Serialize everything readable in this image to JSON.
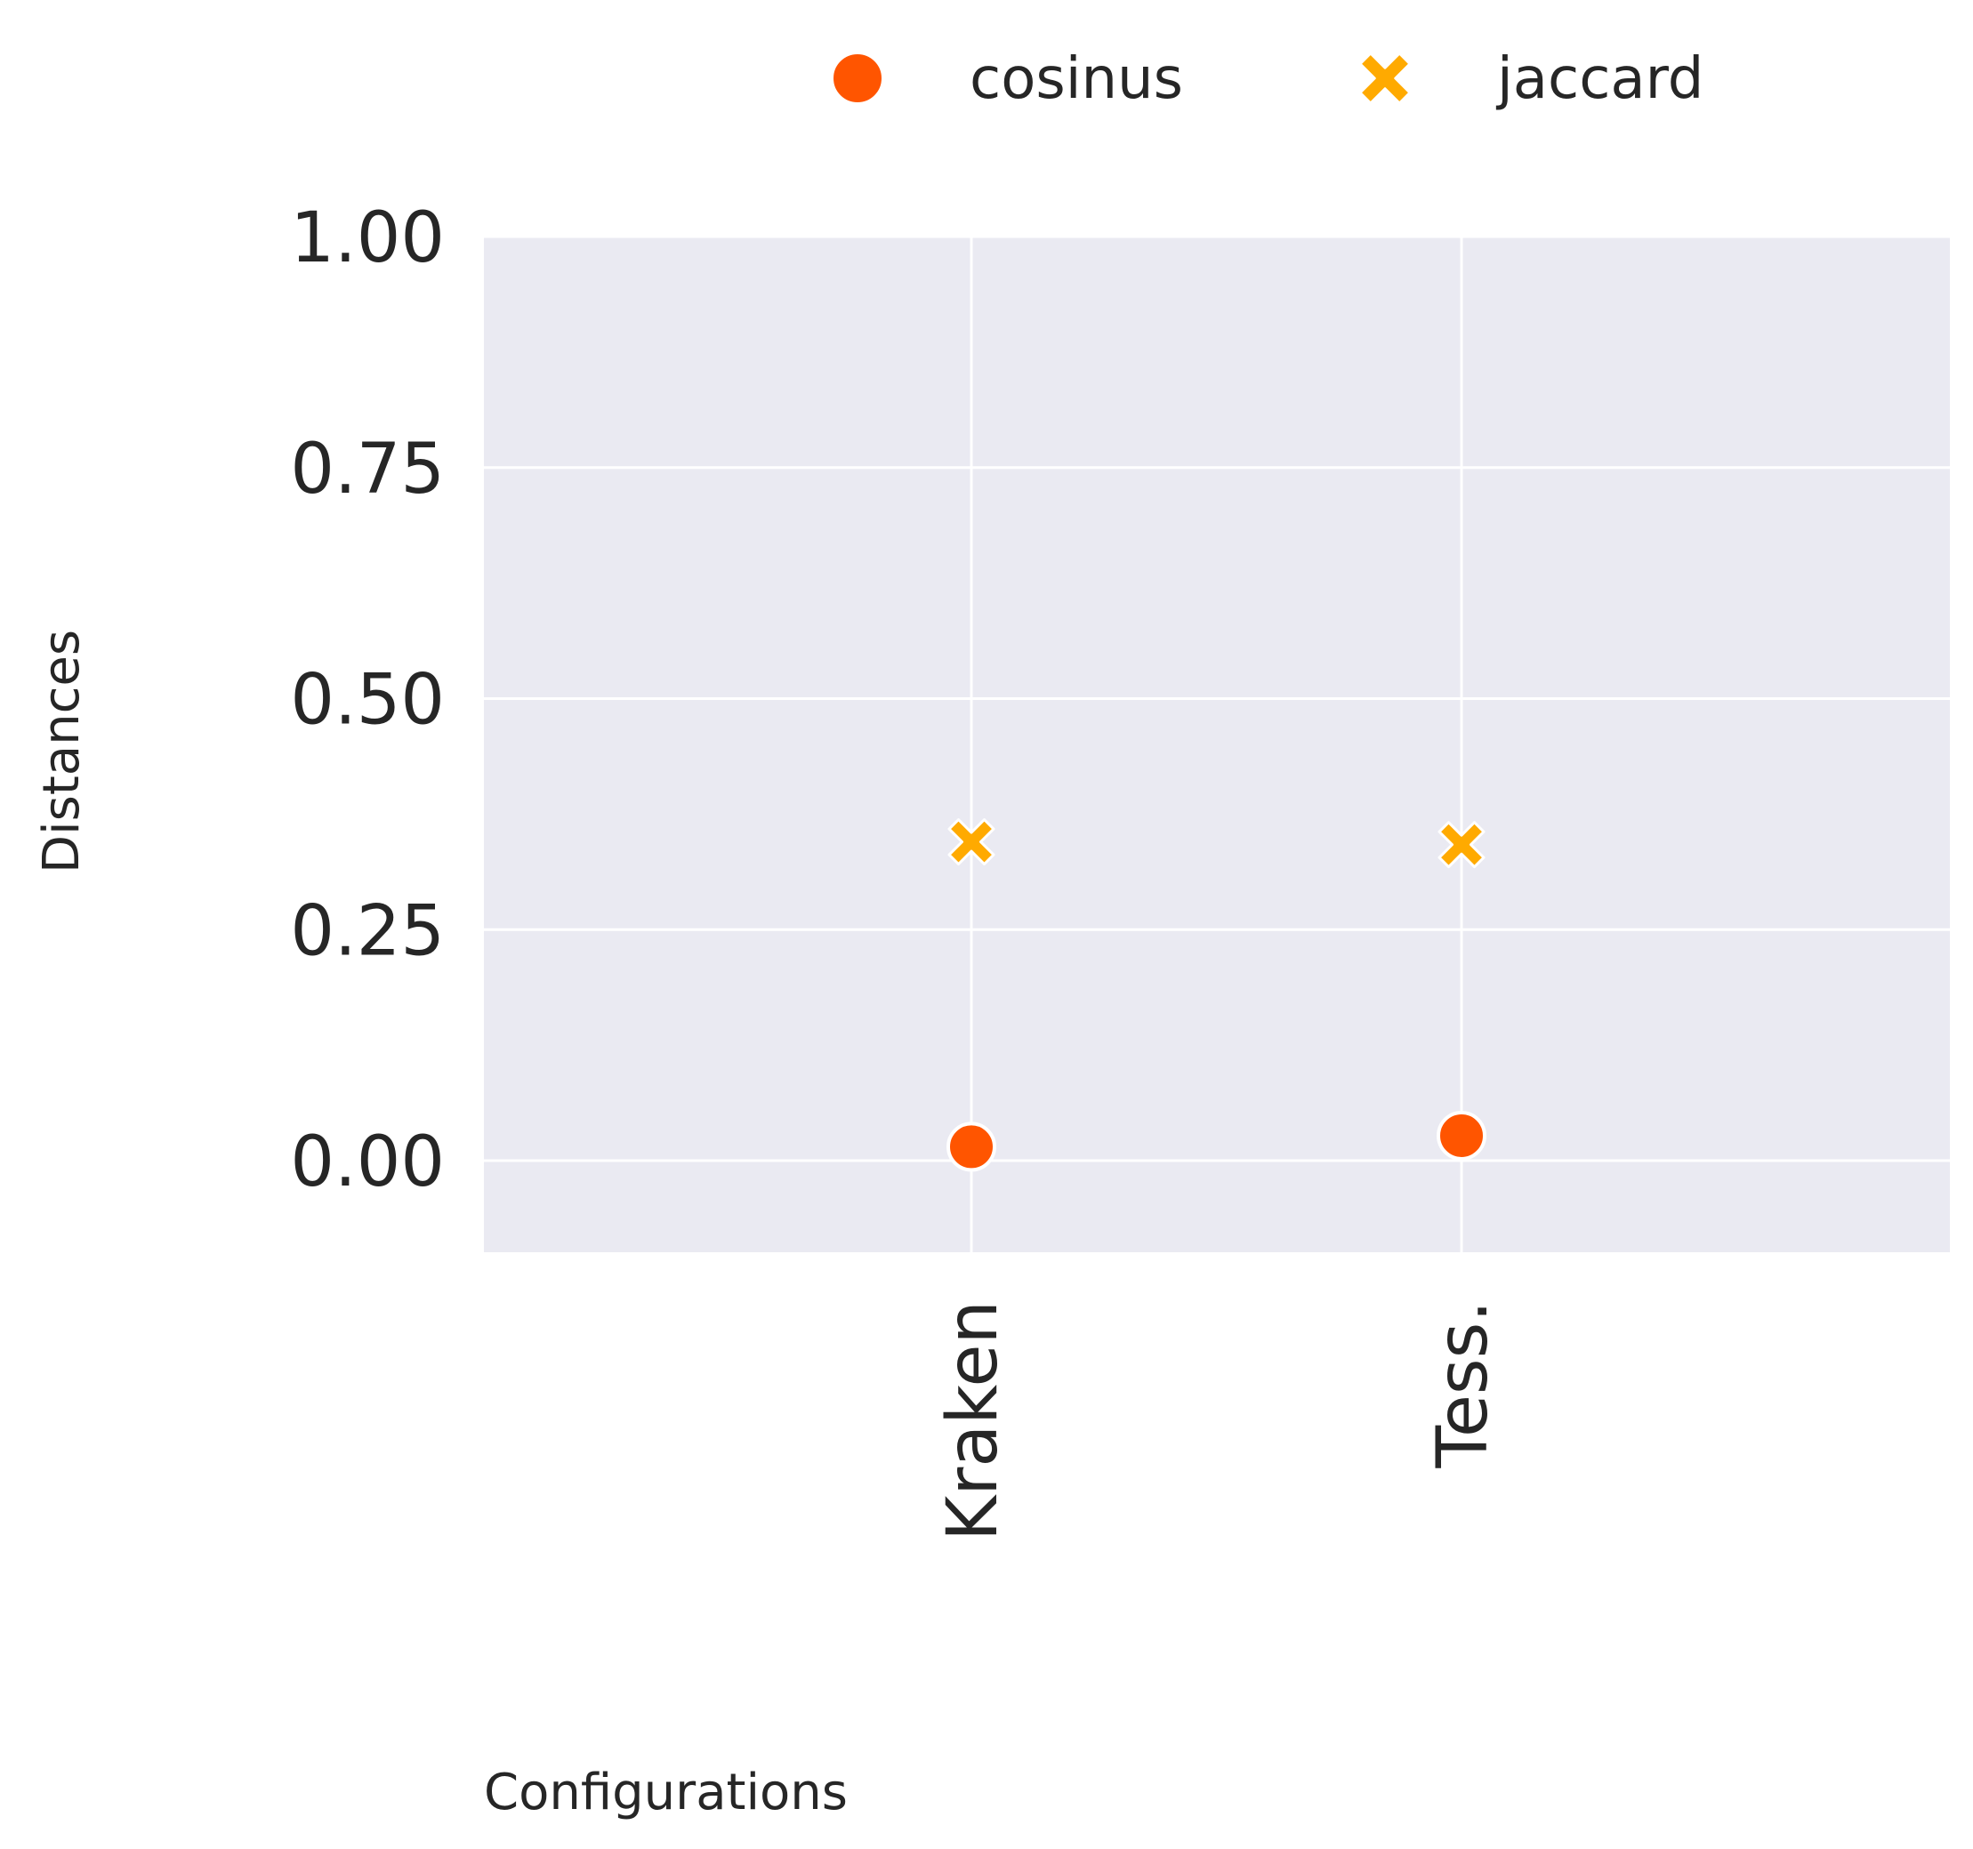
{
  "chart_data": {
    "type": "scatter",
    "categories": [
      "Kraken",
      "Tess."
    ],
    "series": [
      {
        "name": "cosinus",
        "marker": "circle",
        "color": "#ff5500",
        "values": [
          0.015,
          0.027
        ]
      },
      {
        "name": "jaccard",
        "marker": "x",
        "color": "#ffaa00",
        "values": [
          0.345,
          0.342
        ]
      }
    ],
    "xlabel": "Configurations",
    "ylabel": "Distances",
    "ylim": [
      -0.1,
      1.0
    ],
    "yticks": [
      "1.00",
      "0.75",
      "0.50",
      "0.25",
      "0.00"
    ],
    "grid": true,
    "legend_position": "top",
    "background_color": "#eaeaf2"
  }
}
